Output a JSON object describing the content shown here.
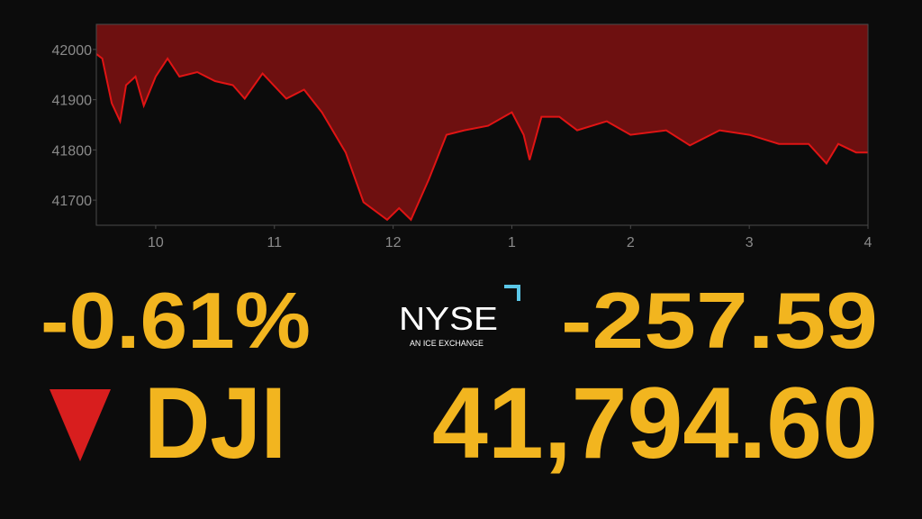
{
  "chart_data": {
    "type": "area",
    "x": [
      9.5,
      9.55,
      9.63,
      9.7,
      9.75,
      9.83,
      9.9,
      10.0,
      10.1,
      10.2,
      10.35,
      10.5,
      10.65,
      10.75,
      10.9,
      11.1,
      11.25,
      11.4,
      11.6,
      11.75,
      11.95,
      12.05,
      12.15,
      12.3,
      12.45,
      12.6,
      12.8,
      13.0,
      13.1,
      13.15,
      13.25,
      13.4,
      13.55,
      13.8,
      14.0,
      14.3,
      14.5,
      14.75,
      15.0,
      15.25,
      15.5,
      15.65,
      15.75,
      15.9,
      16.0
    ],
    "series": [
      {
        "color": "#e01414",
        "fill": "#6e1010",
        "values": [
          41991,
          41982,
          41893,
          41857,
          41929,
          41946,
          41888,
          41946,
          41982,
          41946,
          41955,
          41937,
          41929,
          41902,
          41952,
          41902,
          41920,
          41875,
          41795,
          41696,
          41661,
          41684,
          41661,
          41741,
          41830,
          41839,
          41848,
          41875,
          41830,
          41780,
          41866,
          41866,
          41839,
          41857,
          41830,
          41839,
          41809,
          41839,
          41830,
          41812,
          41812,
          41773,
          41812,
          41795,
          41795
        ]
      }
    ],
    "xlim": [
      9.5,
      16
    ],
    "xticks": [
      10,
      11,
      12,
      {
        "value": 13,
        "label": "1"
      },
      {
        "value": 14,
        "label": "2"
      },
      {
        "value": 15,
        "label": "3"
      },
      {
        "value": 16,
        "label": "4"
      }
    ],
    "ylim": [
      41650,
      42050
    ],
    "yticks": [
      41700,
      41800,
      41900,
      42000
    ]
  },
  "ticker": {
    "change_percent": "-0.61%",
    "change_points": "-257.59",
    "symbol": "DJI",
    "price": "41,794.60",
    "logo": {
      "name": "NYSE",
      "tagline": "AN ICE EXCHANGE"
    }
  }
}
